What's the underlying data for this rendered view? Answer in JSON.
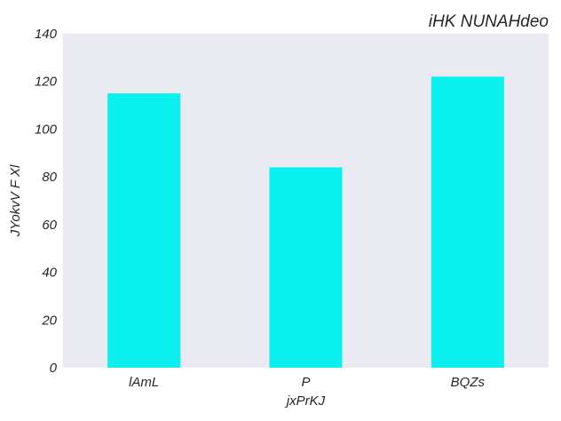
{
  "chart_data": {
    "type": "bar",
    "title": "iHK  NUNAHdeo",
    "xlabel": "jxPrKJ",
    "ylabel": "JYokvV F Xl",
    "categories": [
      "lAmL",
      "P",
      "BQZs"
    ],
    "values": [
      115,
      84,
      122
    ],
    "ylim": [
      0,
      140
    ],
    "yticks": [
      0,
      20,
      40,
      60,
      80,
      100,
      120,
      140
    ],
    "grid": false,
    "legend": "none",
    "colors": {
      "bar": "#0af0ee",
      "plot_background": "#eaeaf2",
      "text": "#262626"
    }
  }
}
